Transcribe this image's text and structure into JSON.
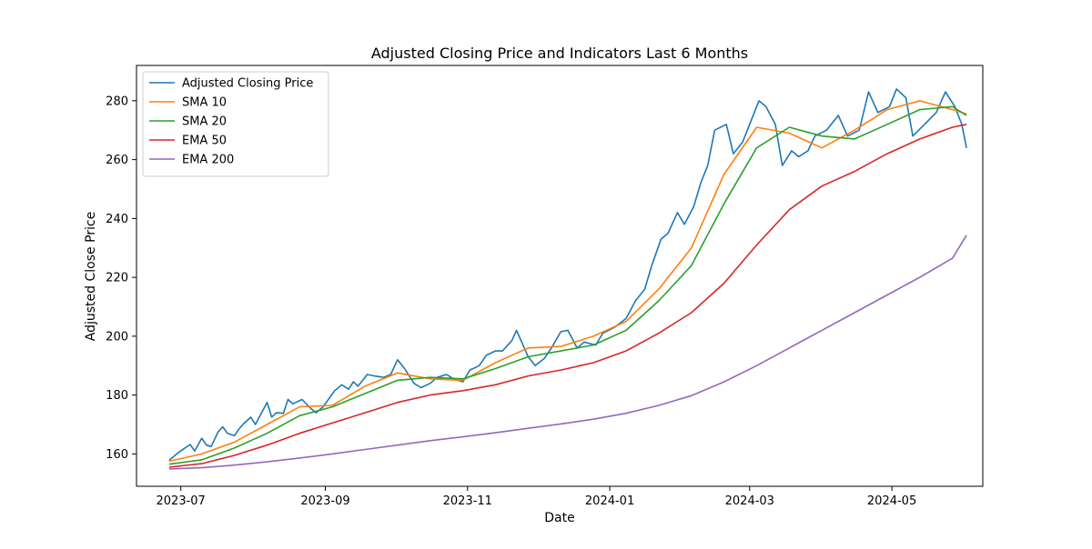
{
  "chart_data": {
    "type": "line",
    "title": "Adjusted Closing Price and Indicators Last 6 Months",
    "xlabel": "Date",
    "ylabel": "Adjusted Close Price",
    "xlim": [
      "2023-06-12",
      "2024-06-09"
    ],
    "ylim": [
      149,
      292
    ],
    "x_ticks": [
      {
        "date": "2023-07-01",
        "label": "2023-07"
      },
      {
        "date": "2023-09-01",
        "label": "2023-09"
      },
      {
        "date": "2023-11-01",
        "label": "2023-11"
      },
      {
        "date": "2024-01-01",
        "label": "2024-01"
      },
      {
        "date": "2024-03-01",
        "label": "2024-03"
      },
      {
        "date": "2024-05-01",
        "label": "2024-05"
      }
    ],
    "y_ticks": [
      160,
      180,
      200,
      220,
      240,
      260,
      280
    ],
    "grid": false,
    "legend_position": "upper-left",
    "series": [
      {
        "name": "Adjusted Closing Price",
        "color": "#1f77b4",
        "points": [
          [
            "2023-06-26",
            157.8
          ],
          [
            "2023-06-30",
            160.5
          ],
          [
            "2023-07-05",
            163.2
          ],
          [
            "2023-07-07",
            161.0
          ],
          [
            "2023-07-10",
            165.3
          ],
          [
            "2023-07-12",
            163.0
          ],
          [
            "2023-07-14",
            162.5
          ],
          [
            "2023-07-17",
            167.5
          ],
          [
            "2023-07-19",
            169.2
          ],
          [
            "2023-07-21",
            167.0
          ],
          [
            "2023-07-24",
            166.2
          ],
          [
            "2023-07-26",
            168.5
          ],
          [
            "2023-07-28",
            170.3
          ],
          [
            "2023-07-31",
            172.5
          ],
          [
            "2023-08-02",
            170.0
          ],
          [
            "2023-08-04",
            173.0
          ],
          [
            "2023-08-07",
            177.5
          ],
          [
            "2023-08-09",
            172.5
          ],
          [
            "2023-08-11",
            174.0
          ],
          [
            "2023-08-14",
            173.8
          ],
          [
            "2023-08-16",
            178.5
          ],
          [
            "2023-08-18",
            177.0
          ],
          [
            "2023-08-22",
            178.5
          ],
          [
            "2023-08-25",
            176.0
          ],
          [
            "2023-08-28",
            174.0
          ],
          [
            "2023-08-31",
            176.0
          ],
          [
            "2023-09-05",
            181.5
          ],
          [
            "2023-09-08",
            183.5
          ],
          [
            "2023-09-11",
            182.0
          ],
          [
            "2023-09-13",
            184.5
          ],
          [
            "2023-09-15",
            183.0
          ],
          [
            "2023-09-19",
            187.0
          ],
          [
            "2023-09-22",
            186.5
          ],
          [
            "2023-09-26",
            186.0
          ],
          [
            "2023-09-29",
            187.0
          ],
          [
            "2023-10-02",
            192.0
          ],
          [
            "2023-10-05",
            189.0
          ],
          [
            "2023-10-09",
            184.0
          ],
          [
            "2023-10-12",
            182.5
          ],
          [
            "2023-10-16",
            184.0
          ],
          [
            "2023-10-19",
            186.0
          ],
          [
            "2023-10-23",
            187.0
          ],
          [
            "2023-10-26",
            185.5
          ],
          [
            "2023-10-30",
            184.5
          ],
          [
            "2023-11-02",
            188.5
          ],
          [
            "2023-11-06",
            190.0
          ],
          [
            "2023-11-09",
            193.5
          ],
          [
            "2023-11-13",
            195.0
          ],
          [
            "2023-11-16",
            195.0
          ],
          [
            "2023-11-20",
            198.5
          ],
          [
            "2023-11-22",
            202.0
          ],
          [
            "2023-11-27",
            193.0
          ],
          [
            "2023-11-30",
            190.0
          ],
          [
            "2023-12-04",
            192.5
          ],
          [
            "2023-12-07",
            196.0
          ],
          [
            "2023-12-11",
            201.5
          ],
          [
            "2023-12-14",
            202.0
          ],
          [
            "2023-12-18",
            196.0
          ],
          [
            "2023-12-21",
            198.0
          ],
          [
            "2023-12-26",
            197.0
          ],
          [
            "2023-12-29",
            201.0
          ],
          [
            "2024-01-03",
            203.0
          ],
          [
            "2024-01-08",
            206.0
          ],
          [
            "2024-01-12",
            212.0
          ],
          [
            "2024-01-16",
            216.0
          ],
          [
            "2024-01-19",
            224.0
          ],
          [
            "2024-01-23",
            233.0
          ],
          [
            "2024-01-26",
            235.0
          ],
          [
            "2024-01-30",
            242.0
          ],
          [
            "2024-02-02",
            238.0
          ],
          [
            "2024-02-06",
            244.0
          ],
          [
            "2024-02-09",
            252.0
          ],
          [
            "2024-02-12",
            258.0
          ],
          [
            "2024-02-15",
            270.0
          ],
          [
            "2024-02-20",
            272.0
          ],
          [
            "2024-02-23",
            262.0
          ],
          [
            "2024-02-27",
            266.0
          ],
          [
            "2024-03-01",
            272.0
          ],
          [
            "2024-03-05",
            280.0
          ],
          [
            "2024-03-08",
            278.0
          ],
          [
            "2024-03-12",
            272.0
          ],
          [
            "2024-03-15",
            258.0
          ],
          [
            "2024-03-19",
            263.0
          ],
          [
            "2024-03-22",
            261.0
          ],
          [
            "2024-03-26",
            263.0
          ],
          [
            "2024-03-29",
            268.0
          ],
          [
            "2024-04-03",
            270.0
          ],
          [
            "2024-04-08",
            275.0
          ],
          [
            "2024-04-12",
            268.0
          ],
          [
            "2024-04-17",
            270.0
          ],
          [
            "2024-04-21",
            283.0
          ],
          [
            "2024-04-25",
            276.0
          ],
          [
            "2024-04-30",
            278.0
          ],
          [
            "2024-05-03",
            284.0
          ],
          [
            "2024-05-07",
            281.0
          ],
          [
            "2024-05-10",
            268.0
          ],
          [
            "2024-05-15",
            272.0
          ],
          [
            "2024-05-20",
            276.0
          ],
          [
            "2024-05-24",
            283.0
          ],
          [
            "2024-05-28",
            278.0
          ],
          [
            "2024-05-31",
            272.0
          ],
          [
            "2024-06-02",
            264.0
          ]
        ]
      },
      {
        "name": "SMA 10",
        "color": "#ff7f0e",
        "points": [
          [
            "2023-06-26",
            157.5
          ],
          [
            "2023-07-10",
            160.0
          ],
          [
            "2023-07-24",
            164.0
          ],
          [
            "2023-08-07",
            170.0
          ],
          [
            "2023-08-21",
            176.0
          ],
          [
            "2023-09-04",
            176.5
          ],
          [
            "2023-09-18",
            183.0
          ],
          [
            "2023-10-02",
            187.5
          ],
          [
            "2023-10-16",
            185.5
          ],
          [
            "2023-10-30",
            185.0
          ],
          [
            "2023-11-13",
            191.0
          ],
          [
            "2023-11-27",
            196.0
          ],
          [
            "2023-12-11",
            196.5
          ],
          [
            "2023-12-25",
            200.0
          ],
          [
            "2024-01-08",
            205.0
          ],
          [
            "2024-01-22",
            216.0
          ],
          [
            "2024-02-05",
            230.0
          ],
          [
            "2024-02-19",
            255.0
          ],
          [
            "2024-03-04",
            271.0
          ],
          [
            "2024-03-18",
            269.0
          ],
          [
            "2024-04-01",
            264.0
          ],
          [
            "2024-04-15",
            270.0
          ],
          [
            "2024-04-29",
            277.0
          ],
          [
            "2024-05-13",
            280.0
          ],
          [
            "2024-05-27",
            277.0
          ],
          [
            "2024-06-02",
            275.5
          ]
        ]
      },
      {
        "name": "SMA 20",
        "color": "#2ca02c",
        "points": [
          [
            "2023-06-26",
            156.5
          ],
          [
            "2023-07-10",
            158.0
          ],
          [
            "2023-07-24",
            162.0
          ],
          [
            "2023-08-07",
            167.0
          ],
          [
            "2023-08-21",
            173.0
          ],
          [
            "2023-09-04",
            176.0
          ],
          [
            "2023-09-18",
            180.5
          ],
          [
            "2023-10-02",
            185.0
          ],
          [
            "2023-10-16",
            186.0
          ],
          [
            "2023-10-30",
            185.5
          ],
          [
            "2023-11-13",
            189.0
          ],
          [
            "2023-11-27",
            193.0
          ],
          [
            "2023-12-11",
            195.0
          ],
          [
            "2023-12-25",
            197.0
          ],
          [
            "2024-01-08",
            202.0
          ],
          [
            "2024-01-22",
            212.0
          ],
          [
            "2024-02-05",
            224.0
          ],
          [
            "2024-02-19",
            245.0
          ],
          [
            "2024-03-04",
            264.0
          ],
          [
            "2024-03-18",
            271.0
          ],
          [
            "2024-04-01",
            268.0
          ],
          [
            "2024-04-15",
            267.0
          ],
          [
            "2024-04-29",
            272.0
          ],
          [
            "2024-05-13",
            277.0
          ],
          [
            "2024-05-27",
            278.0
          ],
          [
            "2024-06-02",
            275.0
          ]
        ]
      },
      {
        "name": "EMA 50",
        "color": "#d62728",
        "points": [
          [
            "2023-06-26",
            155.5
          ],
          [
            "2023-07-10",
            156.7
          ],
          [
            "2023-07-24",
            159.5
          ],
          [
            "2023-08-07",
            163.0
          ],
          [
            "2023-08-21",
            167.0
          ],
          [
            "2023-09-04",
            170.5
          ],
          [
            "2023-09-18",
            174.0
          ],
          [
            "2023-10-02",
            177.5
          ],
          [
            "2023-10-16",
            180.0
          ],
          [
            "2023-10-30",
            181.5
          ],
          [
            "2023-11-13",
            183.5
          ],
          [
            "2023-11-27",
            186.5
          ],
          [
            "2023-12-11",
            188.5
          ],
          [
            "2023-12-25",
            191.0
          ],
          [
            "2024-01-08",
            195.0
          ],
          [
            "2024-01-22",
            201.0
          ],
          [
            "2024-02-05",
            208.0
          ],
          [
            "2024-02-19",
            218.0
          ],
          [
            "2024-03-04",
            231.0
          ],
          [
            "2024-03-18",
            243.0
          ],
          [
            "2024-04-01",
            251.0
          ],
          [
            "2024-04-15",
            256.0
          ],
          [
            "2024-04-29",
            262.0
          ],
          [
            "2024-05-13",
            267.0
          ],
          [
            "2024-05-27",
            271.0
          ],
          [
            "2024-06-02",
            272.0
          ]
        ]
      },
      {
        "name": "EMA 200",
        "color": "#9467bd",
        "points": [
          [
            "2023-06-26",
            154.9
          ],
          [
            "2023-07-10",
            155.3
          ],
          [
            "2023-07-24",
            156.2
          ],
          [
            "2023-08-07",
            157.3
          ],
          [
            "2023-08-21",
            158.6
          ],
          [
            "2023-09-04",
            160.0
          ],
          [
            "2023-09-18",
            161.5
          ],
          [
            "2023-10-02",
            163.0
          ],
          [
            "2023-10-16",
            164.5
          ],
          [
            "2023-10-30",
            165.8
          ],
          [
            "2023-11-13",
            167.2
          ],
          [
            "2023-11-27",
            168.7
          ],
          [
            "2023-12-11",
            170.2
          ],
          [
            "2023-12-25",
            171.8
          ],
          [
            "2024-01-08",
            173.8
          ],
          [
            "2024-01-22",
            176.5
          ],
          [
            "2024-02-05",
            179.8
          ],
          [
            "2024-02-19",
            184.5
          ],
          [
            "2024-03-04",
            190.0
          ],
          [
            "2024-03-18",
            196.0
          ],
          [
            "2024-04-01",
            202.0
          ],
          [
            "2024-04-15",
            208.0
          ],
          [
            "2024-04-29",
            214.0
          ],
          [
            "2024-05-13",
            220.0
          ],
          [
            "2024-05-27",
            226.5
          ],
          [
            "2024-06-02",
            234.3
          ]
        ]
      }
    ]
  }
}
